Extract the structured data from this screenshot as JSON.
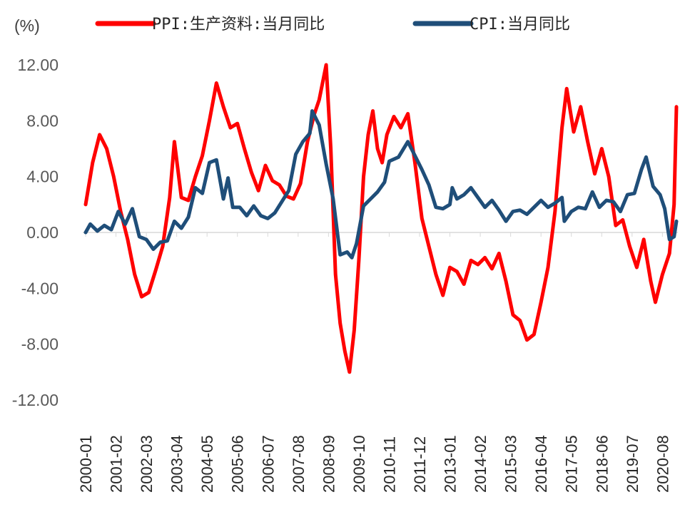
{
  "chart_data": {
    "type": "line",
    "unit_label": "(%)",
    "ylim": [
      -12,
      12
    ],
    "yticks": [
      "12.00",
      "8.00",
      "4.00",
      "0.00",
      "-4.00",
      "-8.00",
      "-12.00"
    ],
    "ytick_values": [
      12,
      8,
      4,
      0,
      -4,
      -8,
      -12
    ],
    "x_start": "2000-01",
    "x_end": "2021-02",
    "x_tick_labels": [
      "2000-01",
      "2001-02",
      "2002-03",
      "2003-04",
      "2004-05",
      "2005-06",
      "2006-07",
      "2007-08",
      "2008-09",
      "2009-10",
      "2010-11",
      "2011-12",
      "2013-01",
      "2014-02",
      "2015-03",
      "2016-04",
      "2017-05",
      "2018-06",
      "2019-07",
      "2020-08"
    ],
    "grid": false,
    "legend_position": "top",
    "series": [
      {
        "name": "PPI:生产资料:当月同比",
        "color": "#ff0000",
        "points": [
          [
            "2000-01",
            2.0
          ],
          [
            "2000-04",
            5.0
          ],
          [
            "2000-07",
            7.0
          ],
          [
            "2000-10",
            6.0
          ],
          [
            "2001-01",
            4.0
          ],
          [
            "2001-04",
            1.5
          ],
          [
            "2001-07",
            -0.5
          ],
          [
            "2001-10",
            -3.0
          ],
          [
            "2002-01",
            -4.6
          ],
          [
            "2002-04",
            -4.3
          ],
          [
            "2002-07",
            -2.7
          ],
          [
            "2002-10",
            -1.0
          ],
          [
            "2003-01",
            2.5
          ],
          [
            "2003-03",
            6.5
          ],
          [
            "2003-06",
            2.5
          ],
          [
            "2003-09",
            2.3
          ],
          [
            "2003-12",
            4.0
          ],
          [
            "2004-03",
            5.5
          ],
          [
            "2004-06",
            8.0
          ],
          [
            "2004-09",
            10.7
          ],
          [
            "2004-12",
            9.0
          ],
          [
            "2005-03",
            7.5
          ],
          [
            "2005-06",
            7.8
          ],
          [
            "2005-09",
            6.0
          ],
          [
            "2005-12",
            4.3
          ],
          [
            "2006-03",
            3.0
          ],
          [
            "2006-06",
            4.8
          ],
          [
            "2006-09",
            3.7
          ],
          [
            "2006-12",
            3.4
          ],
          [
            "2007-03",
            2.6
          ],
          [
            "2007-06",
            2.4
          ],
          [
            "2007-09",
            3.5
          ],
          [
            "2007-12",
            6.5
          ],
          [
            "2008-03",
            8.5
          ],
          [
            "2008-05",
            9.5
          ],
          [
            "2008-08",
            12.0
          ],
          [
            "2008-10",
            6.0
          ],
          [
            "2008-12",
            -3.0
          ],
          [
            "2009-02",
            -6.5
          ],
          [
            "2009-04",
            -8.5
          ],
          [
            "2009-06",
            -10.0
          ],
          [
            "2009-08",
            -7.0
          ],
          [
            "2009-10",
            -2.0
          ],
          [
            "2009-12",
            4.0
          ],
          [
            "2010-02",
            7.0
          ],
          [
            "2010-04",
            8.7
          ],
          [
            "2010-06",
            6.0
          ],
          [
            "2010-08",
            5.0
          ],
          [
            "2010-10",
            7.0
          ],
          [
            "2011-01",
            8.3
          ],
          [
            "2011-04",
            7.5
          ],
          [
            "2011-07",
            8.5
          ],
          [
            "2011-10",
            5.0
          ],
          [
            "2012-01",
            1.0
          ],
          [
            "2012-04",
            -1.0
          ],
          [
            "2012-07",
            -3.0
          ],
          [
            "2012-10",
            -4.5
          ],
          [
            "2013-01",
            -2.5
          ],
          [
            "2013-04",
            -2.8
          ],
          [
            "2013-07",
            -3.7
          ],
          [
            "2013-10",
            -2.0
          ],
          [
            "2014-01",
            -2.3
          ],
          [
            "2014-04",
            -1.8
          ],
          [
            "2014-07",
            -2.6
          ],
          [
            "2014-10",
            -1.5
          ],
          [
            "2015-01",
            -3.5
          ],
          [
            "2015-04",
            -5.9
          ],
          [
            "2015-07",
            -6.3
          ],
          [
            "2015-10",
            -7.7
          ],
          [
            "2016-01",
            -7.3
          ],
          [
            "2016-04",
            -5.0
          ],
          [
            "2016-07",
            -2.5
          ],
          [
            "2016-10",
            1.5
          ],
          [
            "2017-01",
            7.5
          ],
          [
            "2017-03",
            10.3
          ],
          [
            "2017-06",
            7.2
          ],
          [
            "2017-09",
            9.0
          ],
          [
            "2017-12",
            6.5
          ],
          [
            "2018-03",
            4.2
          ],
          [
            "2018-06",
            6.0
          ],
          [
            "2018-09",
            4.0
          ],
          [
            "2018-12",
            0.5
          ],
          [
            "2019-03",
            0.9
          ],
          [
            "2019-06",
            -1.0
          ],
          [
            "2019-09",
            -2.5
          ],
          [
            "2019-12",
            -0.5
          ],
          [
            "2020-03",
            -3.5
          ],
          [
            "2020-05",
            -5.0
          ],
          [
            "2020-08",
            -3.0
          ],
          [
            "2020-11",
            -1.5
          ],
          [
            "2021-01",
            2.0
          ],
          [
            "2021-02",
            9.0
          ]
        ]
      },
      {
        "name": "CPI:当月同比",
        "color": "#1f4e79",
        "points": [
          [
            "2000-01",
            0.0
          ],
          [
            "2000-03",
            0.6
          ],
          [
            "2000-06",
            0.1
          ],
          [
            "2000-09",
            0.5
          ],
          [
            "2000-12",
            0.2
          ],
          [
            "2001-03",
            1.5
          ],
          [
            "2001-06",
            0.6
          ],
          [
            "2001-09",
            1.7
          ],
          [
            "2001-12",
            -0.3
          ],
          [
            "2002-03",
            -0.5
          ],
          [
            "2002-06",
            -1.2
          ],
          [
            "2002-09",
            -0.7
          ],
          [
            "2002-12",
            -0.6
          ],
          [
            "2003-03",
            0.8
          ],
          [
            "2003-06",
            0.3
          ],
          [
            "2003-09",
            1.1
          ],
          [
            "2003-12",
            3.2
          ],
          [
            "2004-03",
            2.8
          ],
          [
            "2004-06",
            5.0
          ],
          [
            "2004-09",
            5.2
          ],
          [
            "2004-12",
            2.4
          ],
          [
            "2005-02",
            3.9
          ],
          [
            "2005-04",
            1.8
          ],
          [
            "2005-07",
            1.8
          ],
          [
            "2005-10",
            1.2
          ],
          [
            "2006-01",
            1.9
          ],
          [
            "2006-04",
            1.2
          ],
          [
            "2006-07",
            1.0
          ],
          [
            "2006-10",
            1.4
          ],
          [
            "2007-01",
            2.2
          ],
          [
            "2007-04",
            3.0
          ],
          [
            "2007-07",
            5.6
          ],
          [
            "2007-10",
            6.5
          ],
          [
            "2008-01",
            7.1
          ],
          [
            "2008-02",
            8.7
          ],
          [
            "2008-05",
            7.7
          ],
          [
            "2008-08",
            4.9
          ],
          [
            "2008-11",
            2.4
          ],
          [
            "2009-02",
            -1.6
          ],
          [
            "2009-05",
            -1.4
          ],
          [
            "2009-07",
            -1.8
          ],
          [
            "2009-09",
            -0.8
          ],
          [
            "2009-12",
            1.9
          ],
          [
            "2010-03",
            2.4
          ],
          [
            "2010-06",
            2.9
          ],
          [
            "2010-09",
            3.6
          ],
          [
            "2010-11",
            5.1
          ],
          [
            "2011-03",
            5.4
          ],
          [
            "2011-07",
            6.5
          ],
          [
            "2011-10",
            5.5
          ],
          [
            "2012-01",
            4.5
          ],
          [
            "2012-04",
            3.4
          ],
          [
            "2012-07",
            1.8
          ],
          [
            "2012-10",
            1.7
          ],
          [
            "2013-01",
            2.0
          ],
          [
            "2013-02",
            3.2
          ],
          [
            "2013-04",
            2.4
          ],
          [
            "2013-07",
            2.7
          ],
          [
            "2013-10",
            3.2
          ],
          [
            "2014-01",
            2.5
          ],
          [
            "2014-04",
            1.8
          ],
          [
            "2014-07",
            2.3
          ],
          [
            "2014-10",
            1.6
          ],
          [
            "2015-01",
            0.8
          ],
          [
            "2015-04",
            1.5
          ],
          [
            "2015-07",
            1.6
          ],
          [
            "2015-10",
            1.3
          ],
          [
            "2016-01",
            1.8
          ],
          [
            "2016-04",
            2.3
          ],
          [
            "2016-07",
            1.8
          ],
          [
            "2016-10",
            2.1
          ],
          [
            "2017-01",
            2.5
          ],
          [
            "2017-02",
            0.8
          ],
          [
            "2017-05",
            1.5
          ],
          [
            "2017-08",
            1.8
          ],
          [
            "2017-11",
            1.7
          ],
          [
            "2018-02",
            2.9
          ],
          [
            "2018-05",
            1.8
          ],
          [
            "2018-08",
            2.3
          ],
          [
            "2018-11",
            2.2
          ],
          [
            "2019-02",
            1.5
          ],
          [
            "2019-05",
            2.7
          ],
          [
            "2019-08",
            2.8
          ],
          [
            "2019-11",
            4.5
          ],
          [
            "2020-01",
            5.4
          ],
          [
            "2020-04",
            3.3
          ],
          [
            "2020-07",
            2.7
          ],
          [
            "2020-09",
            1.7
          ],
          [
            "2020-11",
            -0.5
          ],
          [
            "2021-01",
            -0.3
          ],
          [
            "2021-02",
            0.8
          ]
        ]
      }
    ]
  }
}
